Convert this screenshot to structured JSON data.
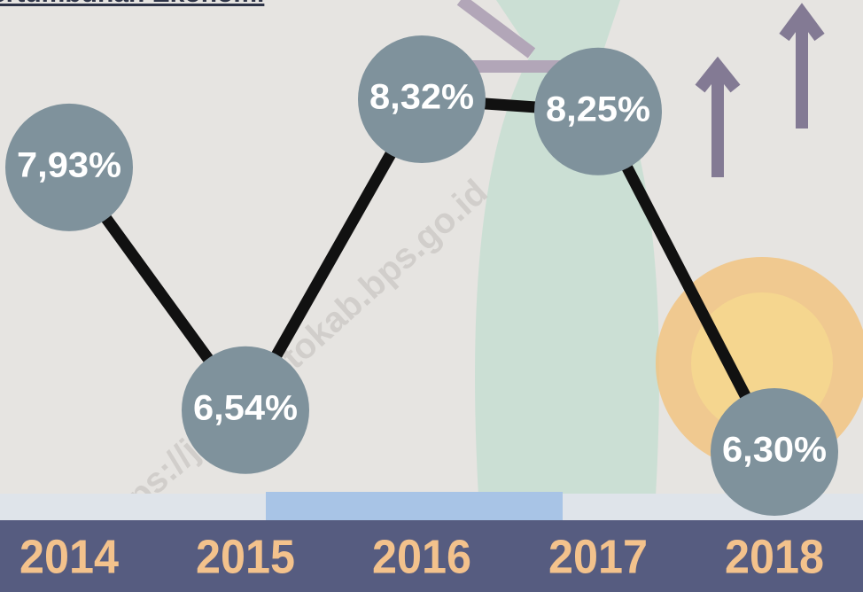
{
  "chart_data": {
    "type": "line",
    "title": "ertumbuhan Ekonomi",
    "watermark": "https://jenepontokab.bps.go.id",
    "categories": [
      "2014",
      "2015",
      "2016",
      "2017",
      "2018"
    ],
    "values": [
      7.93,
      6.54,
      8.32,
      8.25,
      6.3
    ],
    "value_labels": [
      "7,93%",
      "6,54%",
      "8,32%",
      "8,25%",
      "6,30%"
    ],
    "color": "#111111",
    "marker_color": "#7f929c"
  }
}
